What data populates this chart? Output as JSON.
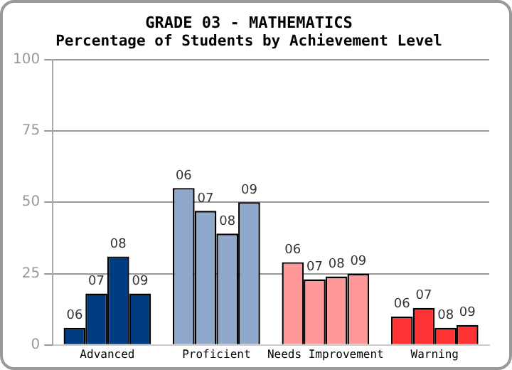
{
  "chart_data": {
    "type": "bar",
    "title": "GRADE 03 - MATHEMATICS",
    "subtitle": "Percentage of Students by Achievement Level",
    "categories": [
      "Advanced",
      "Proficient",
      "Needs Improvement",
      "Warning"
    ],
    "series": [
      {
        "name": "06",
        "colors": [
          "#003d80",
          "#8fa8cc",
          "#ff9999",
          "#ff3333"
        ],
        "values": [
          6,
          55,
          29,
          10
        ]
      },
      {
        "name": "07",
        "colors": [
          "#003d80",
          "#8fa8cc",
          "#ff9999",
          "#ff3333"
        ],
        "values": [
          18,
          47,
          23,
          13
        ]
      },
      {
        "name": "08",
        "colors": [
          "#003d80",
          "#8fa8cc",
          "#ff9999",
          "#ff3333"
        ],
        "values": [
          31,
          39,
          24,
          6
        ]
      },
      {
        "name": "09",
        "colors": [
          "#003d80",
          "#8fa8cc",
          "#ff9999",
          "#ff3333"
        ],
        "values": [
          18,
          50,
          25,
          7
        ]
      }
    ],
    "ylim": [
      0,
      100
    ],
    "yticks": [
      0,
      25,
      50,
      75,
      100
    ],
    "grid": "y",
    "legend": false
  }
}
